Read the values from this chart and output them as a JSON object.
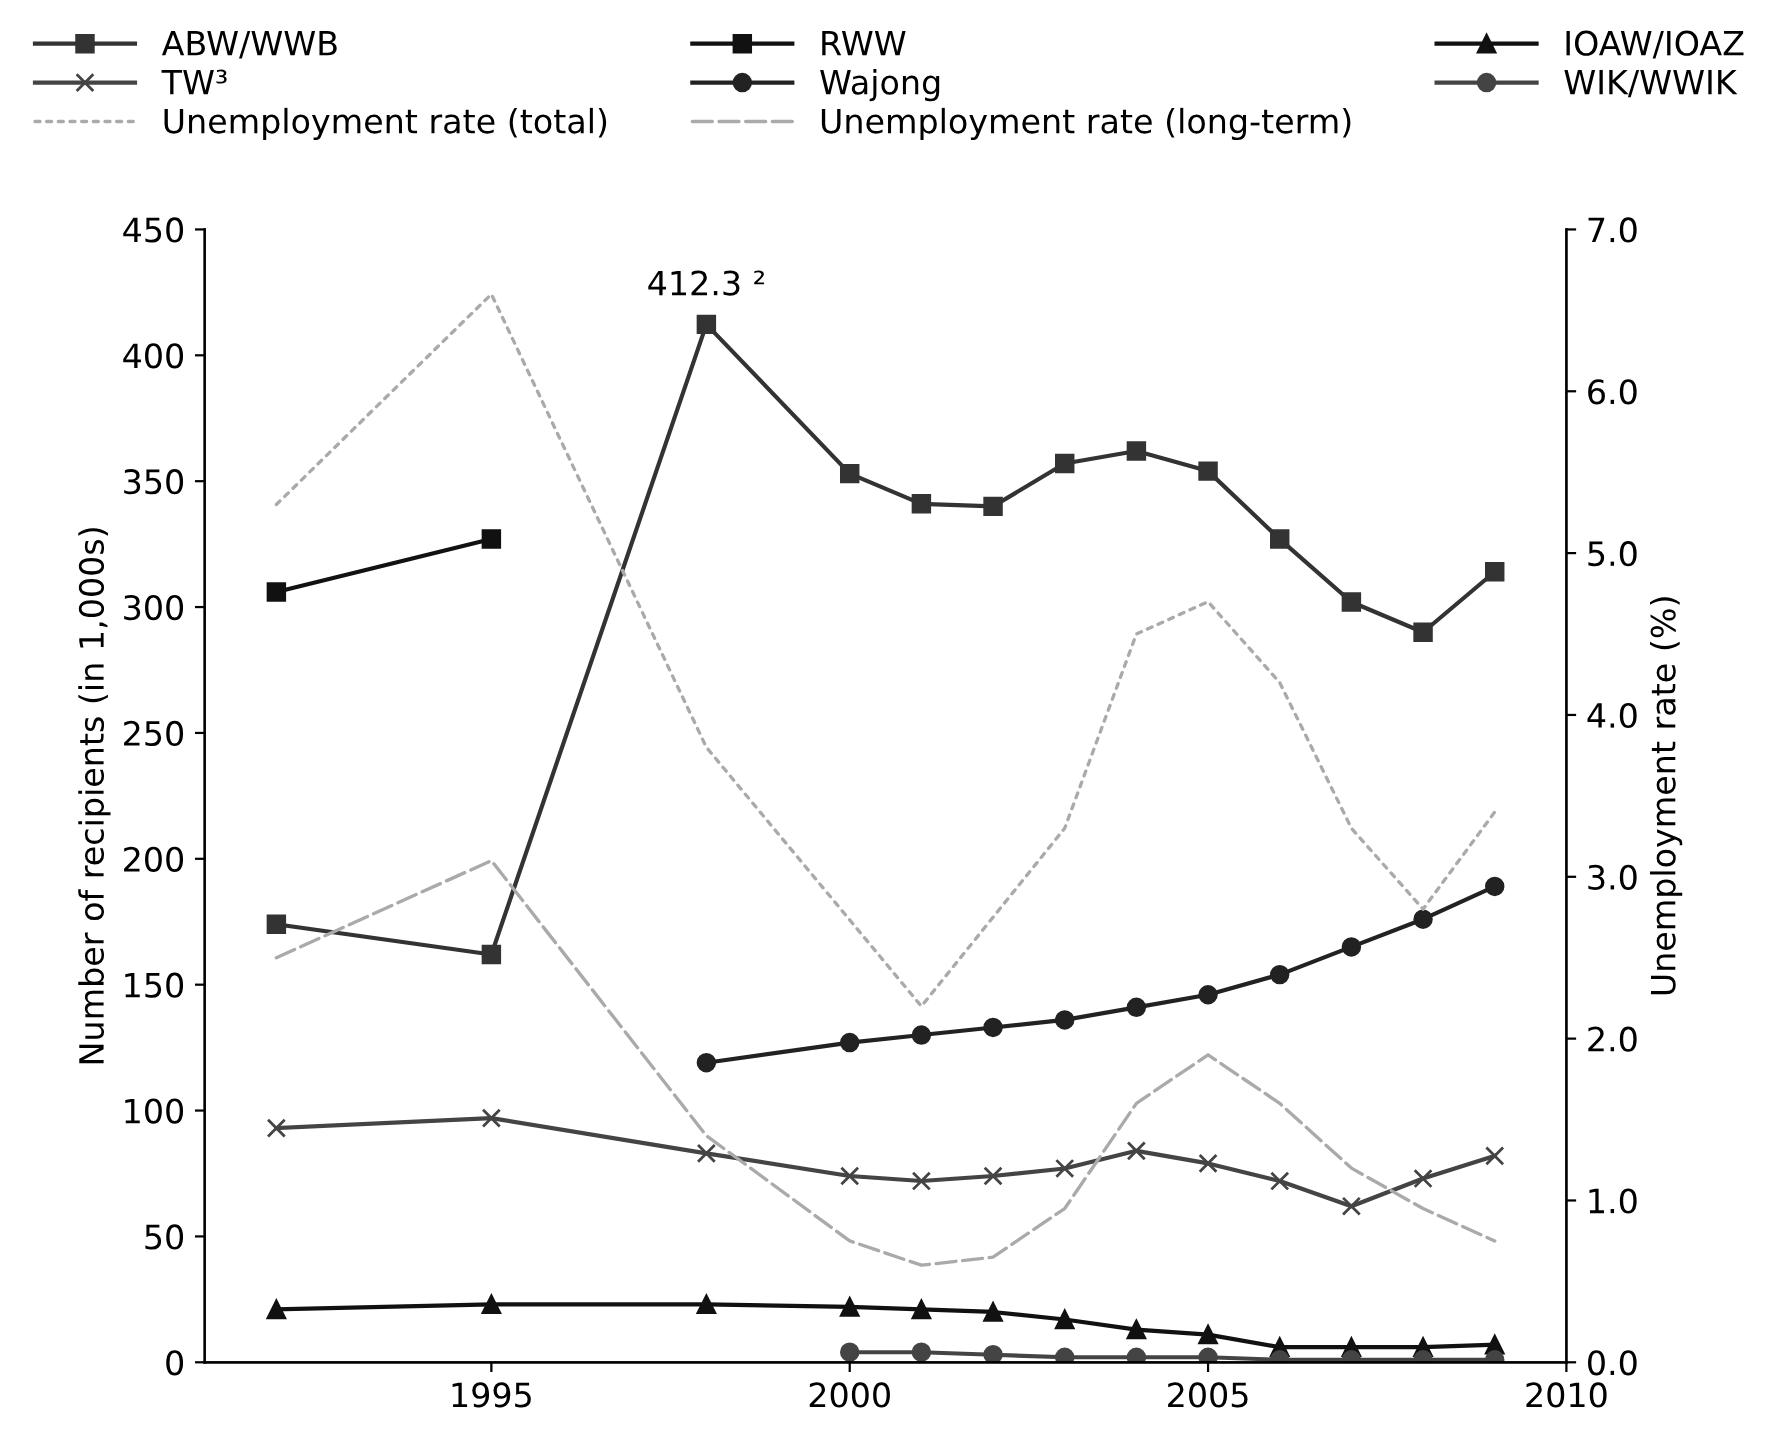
{
  "chart_data": {
    "type": "line",
    "ylabel": "Number of recipients (in 1,000s)",
    "y2label": "Unemployment rate (%)",
    "xlim": [
      1991,
      2010
    ],
    "xticks": [
      1995,
      2000,
      2005,
      2010
    ],
    "ylim": [
      0,
      450
    ],
    "yticks": [
      0,
      50,
      100,
      150,
      200,
      250,
      300,
      350,
      400,
      450
    ],
    "y2lim": [
      0,
      7
    ],
    "y2ticks": [
      {
        "value": 0,
        "label": "0.0"
      },
      {
        "value": 1,
        "label": "1.0"
      },
      {
        "value": 2,
        "label": "2.0"
      },
      {
        "value": 3,
        "label": "3.0"
      },
      {
        "value": 4,
        "label": "4.0"
      },
      {
        "value": 5,
        "label": "5.0"
      },
      {
        "value": 6,
        "label": "6.0"
      },
      {
        "value": 7,
        "label": "7.0"
      }
    ],
    "legend": "top",
    "grid": false,
    "annotations": [
      {
        "text": "412.3 ²",
        "x": 1998,
        "y": 412.3
      }
    ],
    "series": [
      {
        "name": "ABW/WWB",
        "color": "#333333",
        "marker": "square",
        "line_style": "solid",
        "x": [
          1992,
          1995,
          1998,
          2000,
          2001,
          2002,
          2003,
          2004,
          2005,
          2006,
          2007,
          2008,
          2009
        ],
        "values": [
          174,
          162,
          412.3,
          353,
          341,
          340,
          357,
          362,
          354,
          327,
          302,
          290,
          314
        ]
      },
      {
        "name": "RWW",
        "color": "#111111",
        "marker": "square",
        "line_style": "solid",
        "x": [
          1992,
          1995
        ],
        "values": [
          306,
          327
        ]
      },
      {
        "name": "IOAW/IOAZ",
        "color": "#111111",
        "marker": "triangle",
        "line_style": "solid",
        "x": [
          1992,
          1995,
          1998,
          2000,
          2001,
          2002,
          2003,
          2004,
          2005,
          2006,
          2007,
          2008,
          2009
        ],
        "values": [
          21,
          23,
          23,
          22,
          21,
          20,
          17,
          13,
          11,
          6,
          6,
          6,
          7
        ]
      },
      {
        "name": "TW³",
        "color": "#444444",
        "marker": "cross",
        "line_style": "solid",
        "x": [
          1992,
          1995,
          1998,
          2000,
          2001,
          2002,
          2003,
          2004,
          2005,
          2006,
          2007,
          2008,
          2009
        ],
        "values": [
          93,
          97,
          83,
          74,
          72,
          74,
          77,
          84,
          79,
          72,
          62,
          73,
          82
        ]
      },
      {
        "name": "Wajong",
        "color": "#222222",
        "marker": "circle",
        "line_style": "solid",
        "x": [
          1998,
          2000,
          2001,
          2002,
          2003,
          2004,
          2005,
          2006,
          2007,
          2008,
          2009
        ],
        "values": [
          119,
          127,
          130,
          133,
          136,
          141,
          146,
          154,
          165,
          176,
          189
        ]
      },
      {
        "name": "WIK/WWIK",
        "color": "#444444",
        "marker": "circle",
        "line_style": "solid",
        "x": [
          2000,
          2001,
          2002,
          2003,
          2004,
          2005,
          2006,
          2007,
          2008,
          2009
        ],
        "values": [
          4,
          4,
          3,
          2,
          2,
          2,
          1,
          1,
          1,
          1
        ]
      },
      {
        "name": "Unemployment rate (total)",
        "color": "#aaaaaa",
        "marker": "none",
        "line_style": "dotted",
        "axis": "y2",
        "x": [
          1992,
          1995,
          1998,
          2001,
          2003,
          2004,
          2005,
          2006,
          2007,
          2008,
          2009
        ],
        "values": [
          5.3,
          6.6,
          3.8,
          2.2,
          3.3,
          4.5,
          4.7,
          4.2,
          3.3,
          2.8,
          3.4
        ]
      },
      {
        "name": "Unemployment rate (long-term)",
        "color": "#aaaaaa",
        "marker": "none",
        "line_style": "dashed",
        "axis": "y2",
        "x": [
          1992,
          1995,
          1998,
          2000,
          2001,
          2002,
          2003,
          2004,
          2005,
          2006,
          2007,
          2008,
          2009
        ],
        "values": [
          2.5,
          3.1,
          1.4,
          0.75,
          0.6,
          0.65,
          0.95,
          1.6,
          1.9,
          1.6,
          1.2,
          0.95,
          0.75
        ]
      }
    ]
  }
}
